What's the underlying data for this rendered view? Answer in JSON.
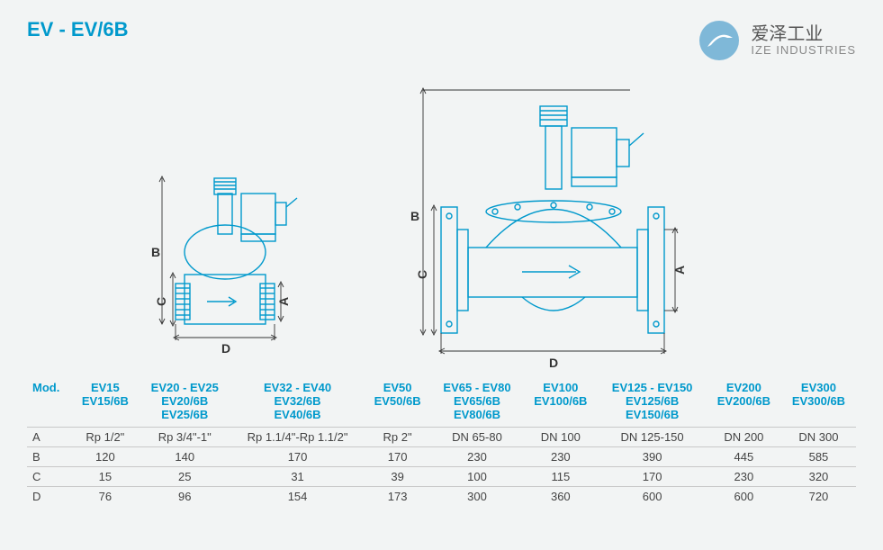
{
  "title": "EV - EV/6B",
  "logo": {
    "cn": "爱泽工业",
    "en": "IZE INDUSTRIES",
    "circle_color": "#7fb8d8",
    "swoosh_color": "#ffffff"
  },
  "diagram": {
    "stroke": "#0099cc",
    "stroke_width": 1.4,
    "dim_arrow_color": "#333333",
    "dims": {
      "A": "A",
      "B": "B",
      "C": "C",
      "D": "D"
    }
  },
  "table": {
    "header_label": "Mod.",
    "columns": [
      {
        "lines": [
          "EV15",
          "EV15/6B"
        ]
      },
      {
        "lines": [
          "EV20 - EV25",
          "EV20/6B",
          "EV25/6B"
        ]
      },
      {
        "lines": [
          "EV32 - EV40",
          "EV32/6B",
          "EV40/6B"
        ]
      },
      {
        "lines": [
          "EV50",
          "EV50/6B"
        ]
      },
      {
        "lines": [
          "EV65 - EV80",
          "EV65/6B",
          "EV80/6B"
        ]
      },
      {
        "lines": [
          "EV100",
          "EV100/6B"
        ]
      },
      {
        "lines": [
          "EV125 - EV150",
          "EV125/6B",
          "EV150/6B"
        ]
      },
      {
        "lines": [
          "EV200",
          "EV200/6B"
        ]
      },
      {
        "lines": [
          "EV300",
          "EV300/6B"
        ]
      }
    ],
    "rows": [
      {
        "label": "A",
        "values": [
          "Rp 1/2\"",
          "Rp 3/4\"-1\"",
          "Rp 1.1/4\"-Rp 1.1/2\"",
          "Rp 2\"",
          "DN 65-80",
          "DN 100",
          "DN 125-150",
          "DN 200",
          "DN 300"
        ]
      },
      {
        "label": "B",
        "values": [
          "120",
          "140",
          "170",
          "170",
          "230",
          "230",
          "390",
          "445",
          "585"
        ]
      },
      {
        "label": "C",
        "values": [
          "15",
          "25",
          "31",
          "39",
          "100",
          "115",
          "170",
          "230",
          "320"
        ]
      },
      {
        "label": "D",
        "values": [
          "76",
          "96",
          "154",
          "173",
          "300",
          "360",
          "600",
          "600",
          "720"
        ]
      }
    ],
    "border_color": "#c8c8c8",
    "header_color": "#0099cc"
  }
}
